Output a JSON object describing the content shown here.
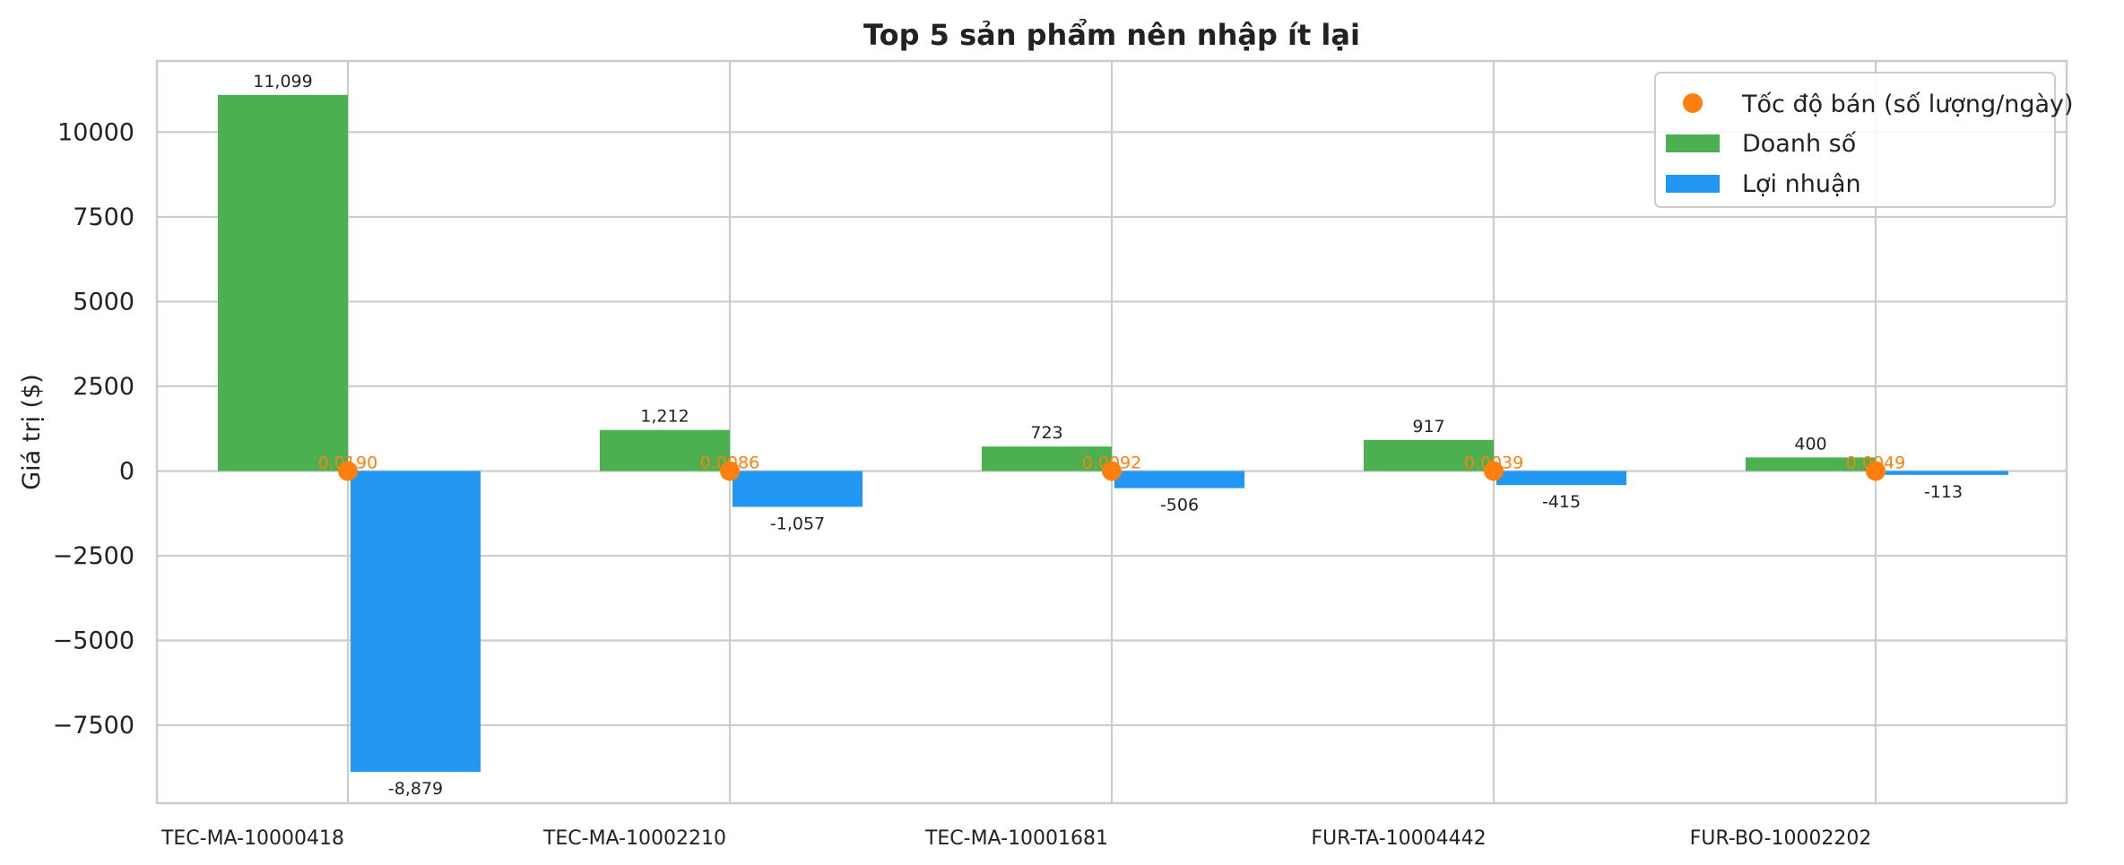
{
  "chart_data": {
    "type": "bar",
    "title": "Top 5 sản phẩm nên nhập ít lại",
    "xlabel": "",
    "ylabel": "Giá trị ($)",
    "ylim": [
      -9800,
      12100
    ],
    "yticks": [
      10000,
      7500,
      5000,
      2500,
      0,
      -2500,
      -5000,
      -7500
    ],
    "ytick_labels": [
      "10000",
      "7500",
      "5000",
      "2500",
      "0",
      "−2500",
      "−5000",
      "−7500"
    ],
    "grid": true,
    "legend_position": "top-right",
    "categories": [
      "TEC-MA-10000418",
      "TEC-MA-10002210",
      "TEC-MA-10001681",
      "FUR-TA-10004442",
      "FUR-BO-10002202"
    ],
    "series": [
      {
        "name": "Doanh số",
        "kind": "bar",
        "color": "#4caf50",
        "values": [
          11099,
          1212,
          723,
          917,
          400
        ],
        "labels": [
          "11,099",
          "1,212",
          "723",
          "917",
          "400"
        ]
      },
      {
        "name": "Lợi nhuận",
        "kind": "bar",
        "color": "#2196f3",
        "values": [
          -8879,
          -1057,
          -506,
          -415,
          -113
        ],
        "labels": [
          "-8,879",
          "-1,057",
          "-506",
          "-415",
          "-113"
        ]
      },
      {
        "name": "Tốc độ bán (số lượng/ngày)",
        "kind": "scatter",
        "color": "#ff7f0e",
        "values": [
          0.019,
          0.0086,
          0.0092,
          0.0039,
          0.0049
        ],
        "labels": [
          "0.0190",
          "0.0086",
          "0.0092",
          "0.0039",
          "0.0049"
        ]
      }
    ]
  }
}
